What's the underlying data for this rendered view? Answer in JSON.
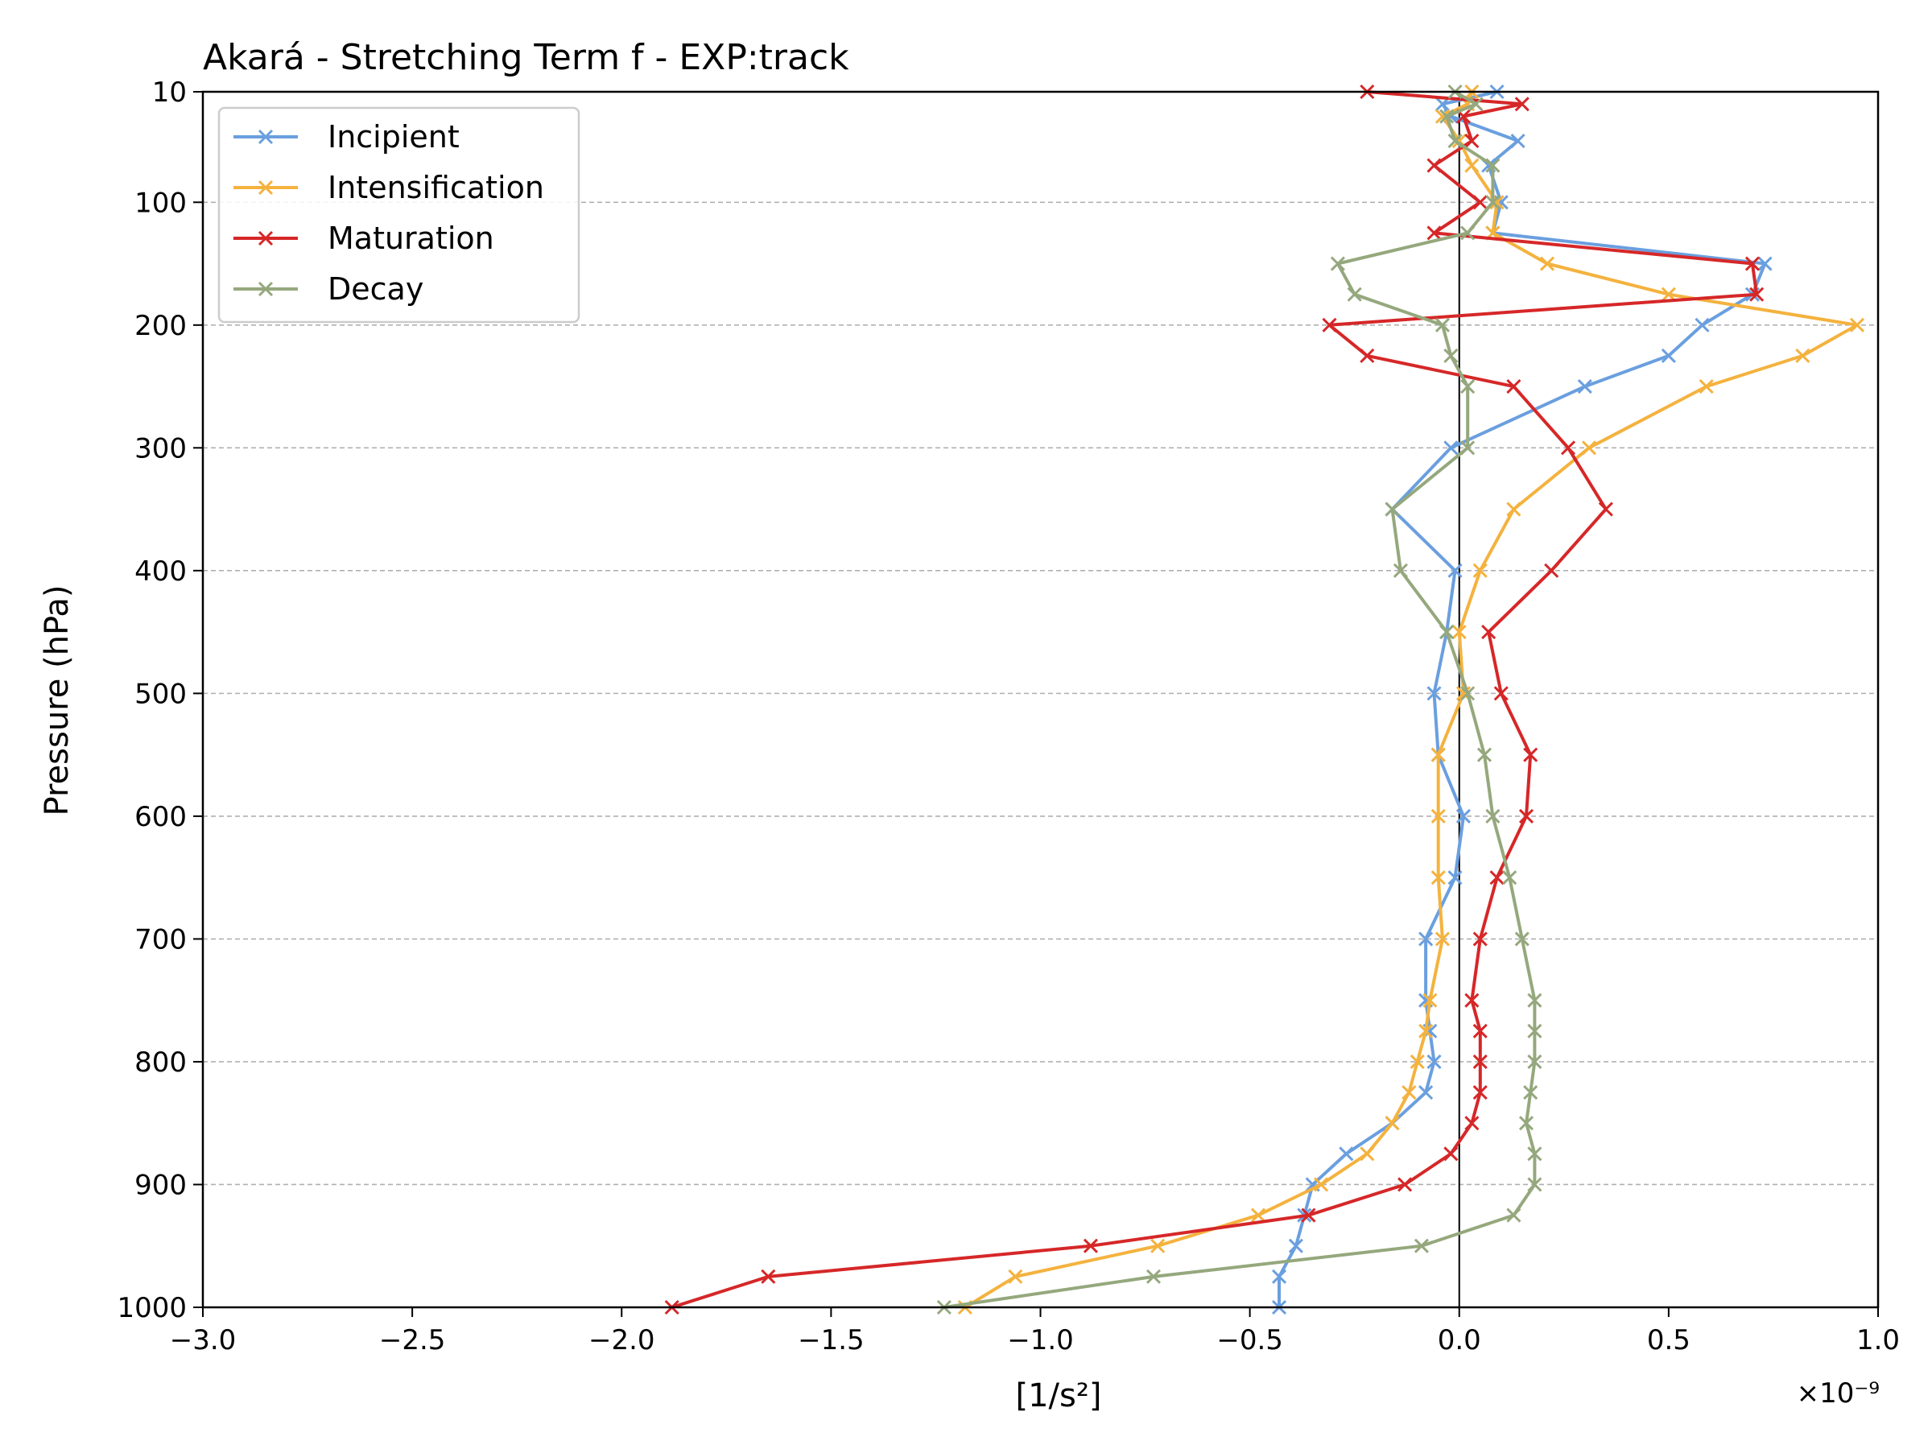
{
  "chart_data": {
    "type": "line",
    "title": "Akará - Stretching Term f - EXP:track",
    "xlabel": "[1/s²]",
    "ylabel": "Pressure (hPa)",
    "x_scale_label": "×10⁻⁹",
    "xlim": [
      -3.0,
      1.0
    ],
    "ylim": [
      10,
      1000
    ],
    "y_inverted": true,
    "x_ticks": [
      -3.0,
      -2.5,
      -2.0,
      -1.5,
      -1.0,
      -0.5,
      0.0,
      0.5,
      1.0
    ],
    "x_tick_labels": [
      "−3.0",
      "−2.5",
      "−2.0",
      "−1.5",
      "−1.0",
      "−0.5",
      "0.0",
      "0.5",
      "1.0"
    ],
    "y_ticks": [
      10,
      100,
      200,
      300,
      400,
      500,
      600,
      700,
      800,
      900,
      1000
    ],
    "y_tick_labels": [
      "10",
      "100",
      "200",
      "300",
      "400",
      "500",
      "600",
      "700",
      "800",
      "900",
      "1000"
    ],
    "grid": "horizontal dashed",
    "zero_line": true,
    "legend_position": "top-left",
    "levels": [
      10,
      20,
      30,
      50,
      70,
      100,
      125,
      150,
      175,
      200,
      225,
      250,
      300,
      350,
      400,
      450,
      500,
      550,
      600,
      650,
      700,
      750,
      775,
      800,
      825,
      850,
      875,
      900,
      925,
      950,
      975,
      1000
    ],
    "series": [
      {
        "name": "Incipient",
        "color": "#6a9fdf",
        "marker": "x",
        "values": [
          0.09,
          -0.04,
          -0.02,
          0.14,
          0.07,
          0.1,
          0.08,
          0.73,
          0.7,
          0.58,
          0.5,
          0.3,
          -0.02,
          -0.16,
          -0.01,
          -0.03,
          -0.06,
          -0.05,
          0.01,
          -0.01,
          -0.08,
          -0.08,
          -0.07,
          -0.06,
          -0.08,
          -0.16,
          -0.27,
          -0.35,
          -0.37,
          -0.39,
          -0.43,
          -0.43
        ]
      },
      {
        "name": "Intensification",
        "color": "#f4b23e",
        "marker": "x",
        "values": [
          0.03,
          0.02,
          -0.04,
          0.0,
          0.03,
          0.09,
          0.08,
          0.21,
          0.5,
          0.95,
          0.82,
          0.59,
          0.31,
          0.13,
          0.05,
          0.0,
          0.01,
          -0.05,
          -0.05,
          -0.05,
          -0.04,
          -0.07,
          -0.08,
          -0.1,
          -0.12,
          -0.16,
          -0.22,
          -0.33,
          -0.48,
          -0.72,
          -1.06,
          -1.18
        ]
      },
      {
        "name": "Maturation",
        "color": "#d62728",
        "marker": "x",
        "values": [
          -0.22,
          0.15,
          0.01,
          0.03,
          -0.06,
          0.05,
          -0.06,
          0.7,
          0.71,
          -0.31,
          -0.22,
          0.13,
          0.26,
          0.35,
          0.22,
          0.07,
          0.1,
          0.17,
          0.16,
          0.09,
          0.05,
          0.03,
          0.05,
          0.05,
          0.05,
          0.03,
          -0.02,
          -0.13,
          -0.36,
          -0.88,
          -1.65,
          -1.88
        ]
      },
      {
        "name": "Decay",
        "color": "#95a87d",
        "marker": "x",
        "values": [
          -0.01,
          0.04,
          -0.03,
          -0.01,
          0.08,
          0.08,
          0.02,
          -0.29,
          -0.25,
          -0.04,
          -0.02,
          0.02,
          0.02,
          -0.16,
          -0.14,
          -0.03,
          0.02,
          0.06,
          0.08,
          0.12,
          0.15,
          0.18,
          0.18,
          0.18,
          0.17,
          0.16,
          0.18,
          0.18,
          0.13,
          -0.09,
          -0.73,
          -1.23
        ]
      }
    ]
  }
}
